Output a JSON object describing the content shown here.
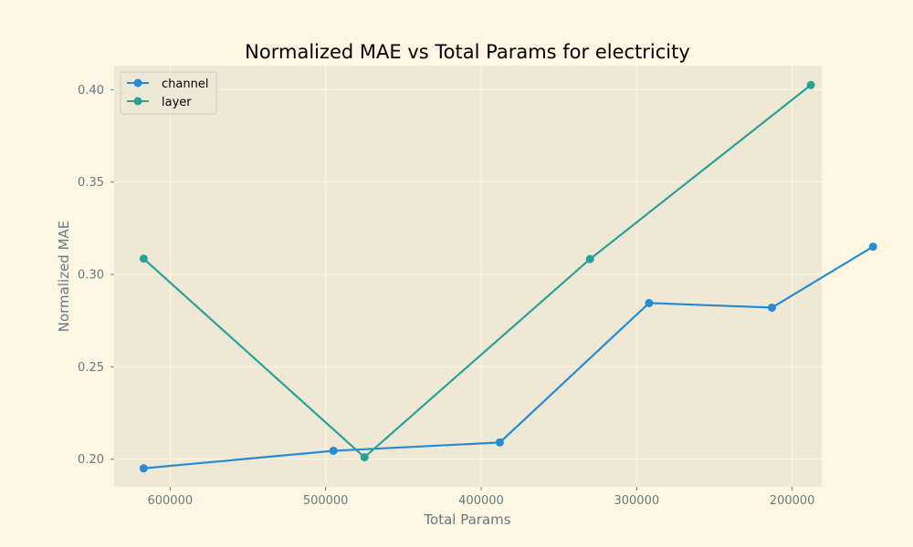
{
  "chart_data": {
    "type": "line",
    "title": "Normalized MAE vs Total Params for electricity",
    "xlabel": "Total Params",
    "ylabel": "Normalized MAE",
    "x_axis_inverted": true,
    "xlim": [
      636000,
      181000
    ],
    "ylim": [
      0.185,
      0.413
    ],
    "xticks": [
      600000,
      500000,
      400000,
      300000,
      200000
    ],
    "yticks": [
      0.2,
      0.25,
      0.3,
      0.35,
      0.4
    ],
    "xtick_labels": [
      "600000",
      "500000",
      "400000",
      "300000",
      "200000"
    ],
    "ytick_labels": [
      "0.20",
      "0.25",
      "0.30",
      "0.35",
      "0.40"
    ],
    "grid": true,
    "legend_position": "top-left",
    "series": [
      {
        "name": "channel",
        "color": "#268bd2",
        "x": [
          617000,
          495000,
          388000,
          292000,
          213000,
          148000
        ],
        "y": [
          0.195,
          0.2045,
          0.209,
          0.2845,
          0.282,
          0.315
        ]
      },
      {
        "name": "layer",
        "color": "#2aa198",
        "x": [
          617000,
          475000,
          330000,
          188000
        ],
        "y": [
          0.3085,
          0.201,
          0.3083,
          0.4025
        ]
      }
    ]
  },
  "colors": {
    "background": "#fdf6e3",
    "plot_background": "#eee8d5",
    "grid": "#fdf6e3",
    "axis_text": "#657b83"
  }
}
